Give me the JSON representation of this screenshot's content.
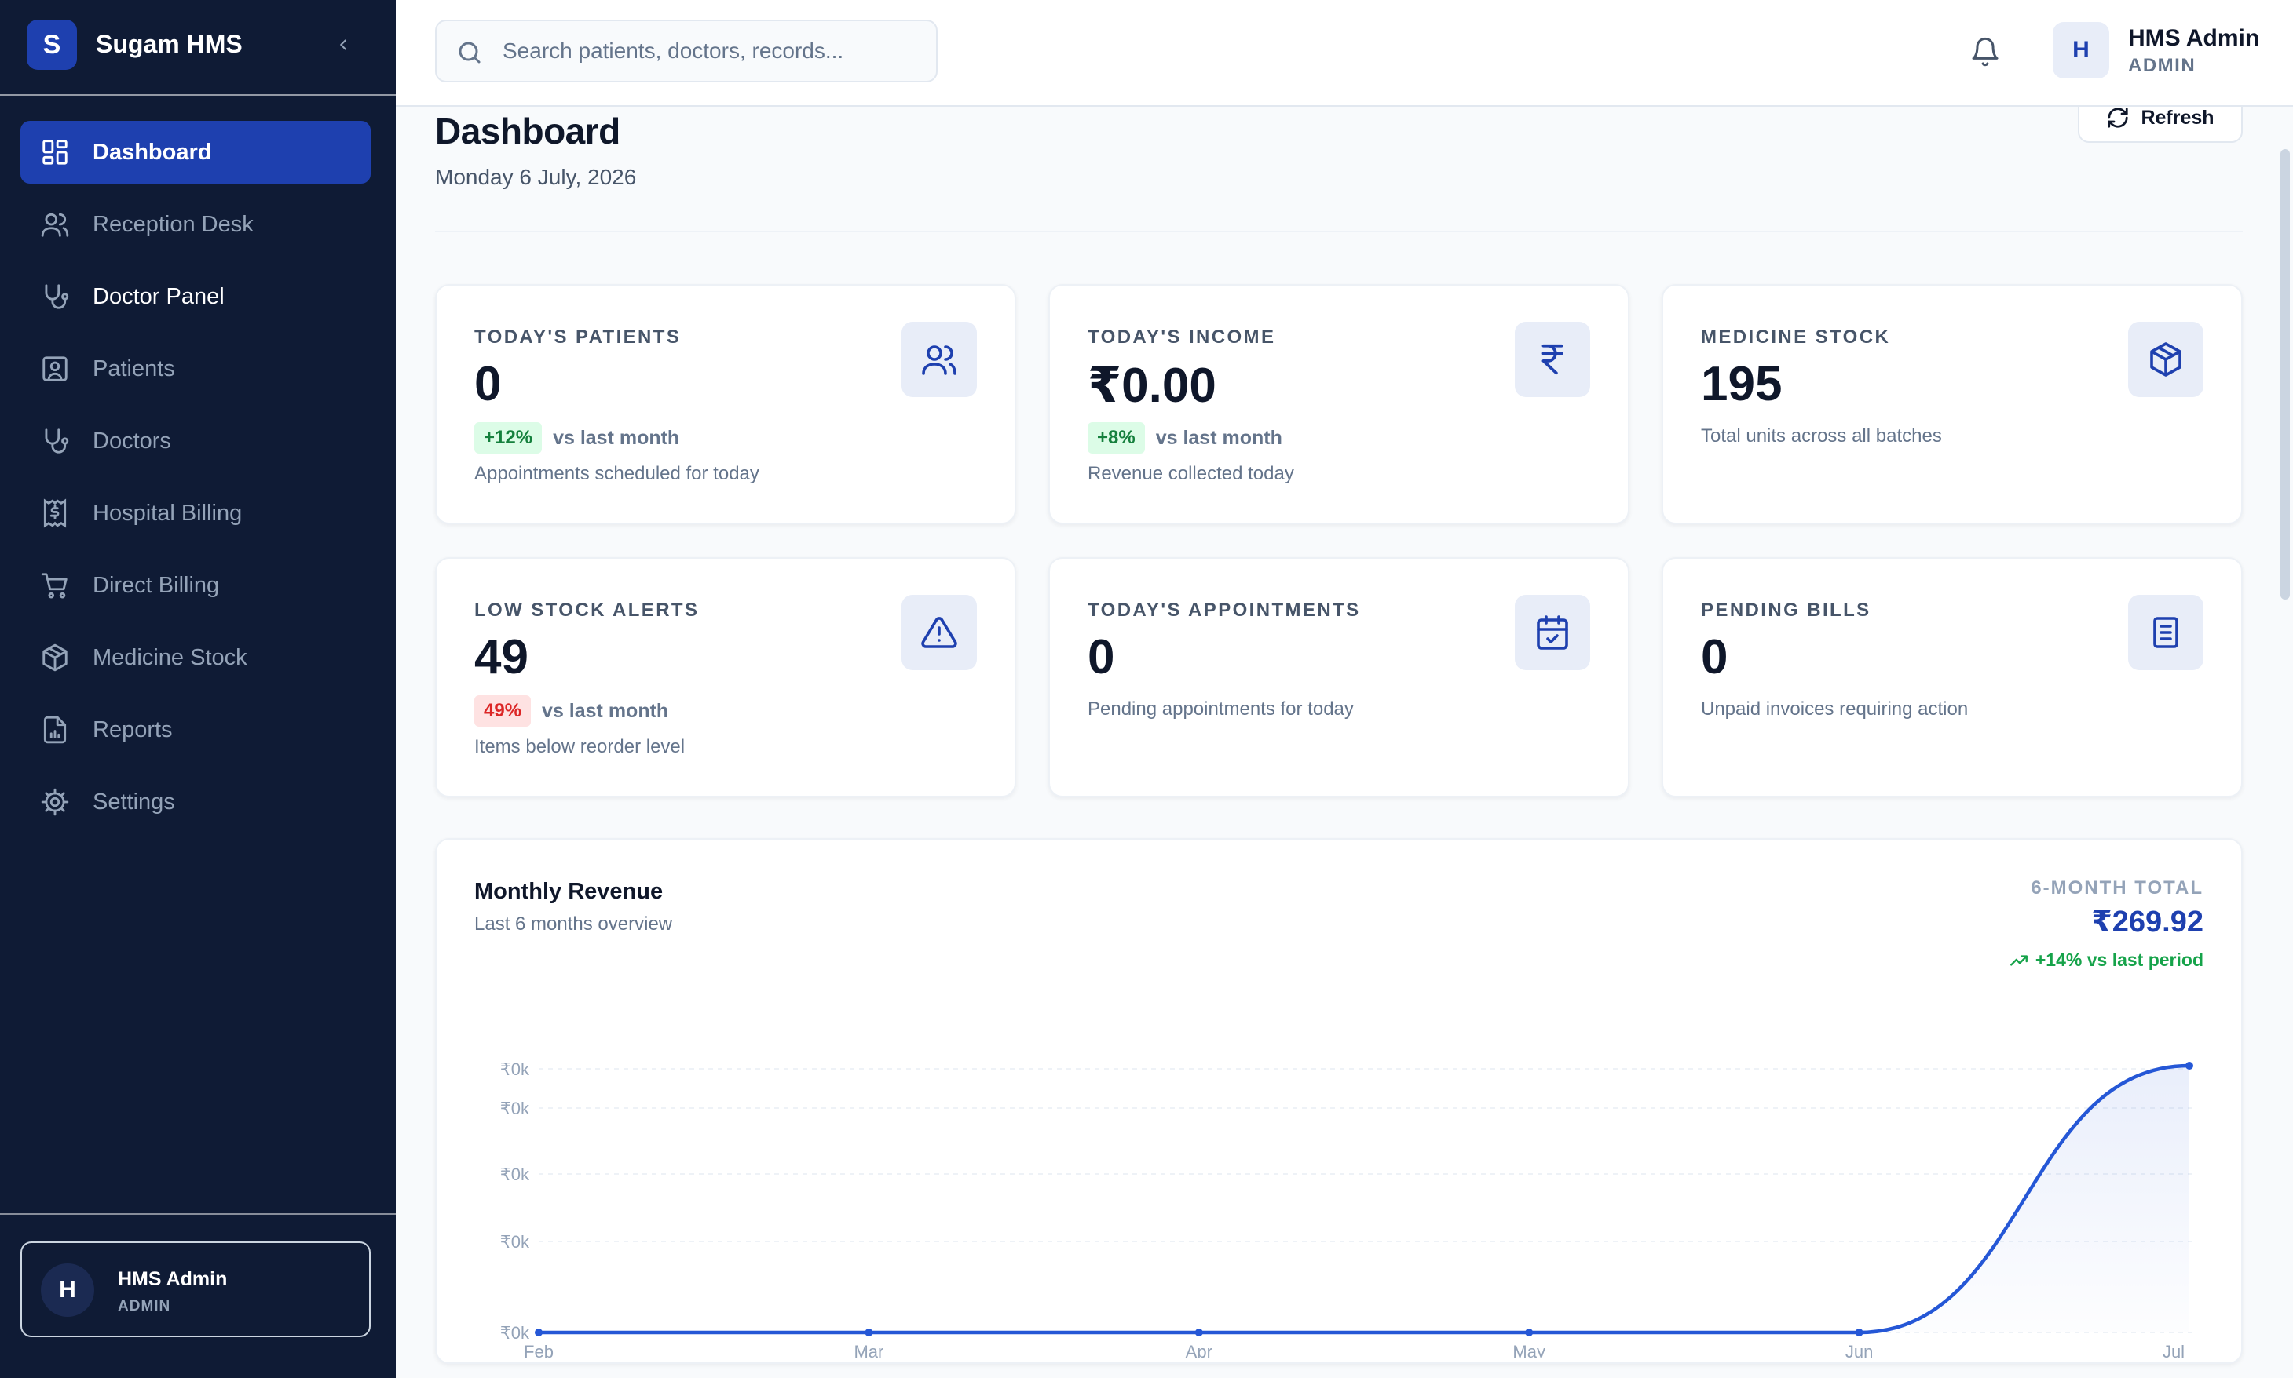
{
  "app": {
    "name": "Sugam HMS",
    "logo_letter": "S"
  },
  "sidebar": {
    "items": [
      {
        "label": "Dashboard",
        "icon": "grid-icon",
        "active": true
      },
      {
        "label": "Reception Desk",
        "icon": "users-icon"
      },
      {
        "label": "Doctor Panel",
        "icon": "stethoscope-icon"
      },
      {
        "label": "Patients",
        "icon": "user-square-icon"
      },
      {
        "label": "Doctors",
        "icon": "stethoscope-icon"
      },
      {
        "label": "Hospital Billing",
        "icon": "receipt-icon"
      },
      {
        "label": "Direct Billing",
        "icon": "cart-icon"
      },
      {
        "label": "Medicine Stock",
        "icon": "package-icon"
      },
      {
        "label": "Reports",
        "icon": "report-icon"
      },
      {
        "label": "Settings",
        "icon": "gear-icon"
      }
    ],
    "user": {
      "initial": "H",
      "name": "HMS Admin",
      "role": "ADMIN"
    }
  },
  "header": {
    "search_placeholder": "Search patients, doctors, records...",
    "user_initial": "H",
    "user_name": "HMS Admin",
    "user_role": "ADMIN"
  },
  "page": {
    "title": "Dashboard",
    "date": "Monday 6 July, 2026",
    "refresh_label": "Refresh"
  },
  "cards": [
    {
      "label": "TODAY'S PATIENTS",
      "value": "0",
      "badge": "+12%",
      "trend": "vs last month",
      "subtitle": "Appointments scheduled for today",
      "icon": "users-icon"
    },
    {
      "label": "TODAY'S INCOME",
      "value": "₹0.00",
      "badge": "+8%",
      "trend": "vs last month",
      "subtitle": "Revenue collected today",
      "icon": "rupee-icon"
    },
    {
      "label": "MEDICINE STOCK",
      "value": "195",
      "subtitle": "Total units across all batches",
      "icon": "package-icon"
    },
    {
      "label": "LOW STOCK ALERTS",
      "value": "49",
      "badge": "49%",
      "trend": "vs last month",
      "subtitle": "Items below reorder level",
      "icon": "alert-triangle-icon"
    },
    {
      "label": "TODAY'S APPOINTMENTS",
      "value": "0",
      "subtitle": "Pending appointments for today",
      "icon": "calendar-check-icon"
    },
    {
      "label": "PENDING BILLS",
      "value": "0",
      "subtitle": "Unpaid invoices requiring action",
      "icon": "clipboard-icon"
    }
  ],
  "revenue": {
    "title": "Monthly Revenue",
    "subtitle": "Last 6 months overview",
    "total_label": "6-MONTH TOTAL",
    "total_value": "₹269.92",
    "total_trend": "+14% vs last period"
  },
  "chart_data": {
    "type": "area",
    "x": [
      "Feb",
      "Mar",
      "Apr",
      "May",
      "Jun",
      "Jul"
    ],
    "values": [
      0,
      0,
      0,
      0,
      0,
      269.92
    ],
    "y_ticks": [
      "₹0k",
      "₹0k",
      "₹0k",
      "₹0k",
      "₹0k"
    ],
    "grid": true,
    "line_color": "#2557d6"
  },
  "colors": {
    "sidebar_bg": "#0f1b35",
    "accent": "#1e40af",
    "positive": "#16a34a",
    "negative": "#dc2626"
  }
}
